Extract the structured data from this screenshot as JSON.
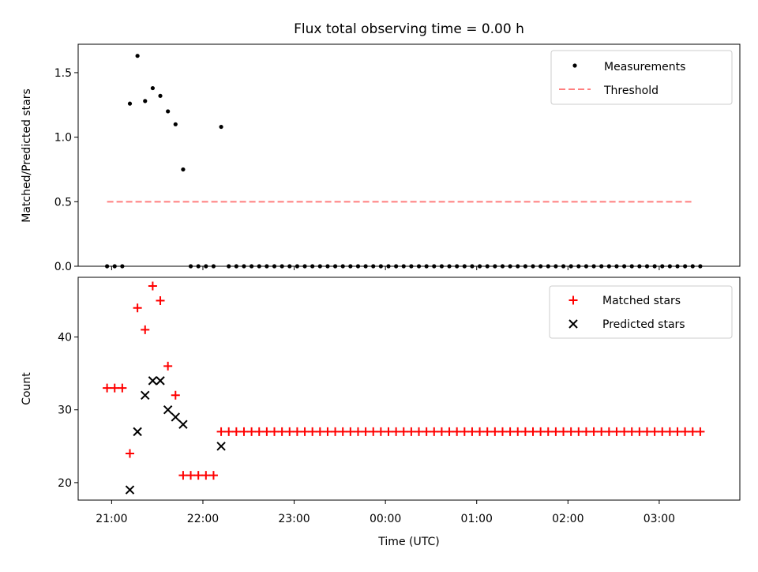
{
  "chart_data": [
    {
      "type": "scatter",
      "title": "Flux total observing time = 0.00 h",
      "xlabel": "",
      "ylabel": "Matched/Predicted stars",
      "xlim": [
        "20:38",
        "03:53"
      ],
      "ylim": [
        0,
        1.72
      ],
      "y_ticks": [
        0.0,
        0.5,
        1.0,
        1.5
      ],
      "y_tick_labels": [
        "0.0",
        "0.5",
        "1.0",
        "1.5"
      ],
      "legend_position": "upper right",
      "series": [
        {
          "name": "Measurements",
          "style": "dot",
          "color": "#000000",
          "x": [
            "20:57",
            "21:02",
            "21:07",
            "21:12",
            "21:17",
            "21:22",
            "21:27",
            "21:32",
            "21:37",
            "21:42",
            "21:47",
            "21:52",
            "21:57",
            "22:02",
            "22:07",
            "22:12"
          ],
          "y": [
            0,
            0,
            0,
            1.26,
            1.63,
            1.28,
            1.38,
            1.32,
            1.2,
            1.1,
            0.75,
            0,
            0,
            0,
            0,
            1.08
          ]
        },
        {
          "name": "Threshold",
          "style": "dashed-line",
          "color": "#ff7f7f",
          "x": [
            "20:57",
            "03:22"
          ],
          "y": [
            0.5,
            0.5
          ]
        }
      ],
      "zero_values_note_free": true
    },
    {
      "type": "scatter",
      "title": "",
      "xlabel": "Time (UTC)",
      "ylabel": "Count",
      "xlim": [
        "20:38",
        "03:53"
      ],
      "ylim": [
        17.6,
        48.2
      ],
      "y_ticks": [
        20,
        30,
        40
      ],
      "y_tick_labels": [
        "20",
        "30",
        "40"
      ],
      "x_ticks": [
        "21:00",
        "22:00",
        "23:00",
        "00:00",
        "01:00",
        "02:00",
        "03:00"
      ],
      "legend_position": "upper right",
      "series": [
        {
          "name": "Matched stars",
          "style": "plus",
          "color": "#ff0000",
          "x": [
            "20:57",
            "21:02",
            "21:07",
            "21:12",
            "21:17",
            "21:22",
            "21:27",
            "21:32",
            "21:37",
            "21:42",
            "21:47",
            "21:52",
            "21:57",
            "22:02",
            "22:07",
            "22:12"
          ],
          "y": [
            33,
            33,
            33,
            24,
            44,
            41,
            47,
            45,
            36,
            32,
            21,
            21,
            21,
            21,
            21,
            27
          ]
        },
        {
          "name": "Predicted stars",
          "style": "x",
          "color": "#000000",
          "x": [
            "21:12",
            "21:17",
            "21:22",
            "21:27",
            "21:32",
            "21:37",
            "21:42",
            "21:47",
            "22:12"
          ],
          "y": [
            19,
            27,
            32,
            34,
            34,
            30,
            29,
            28,
            25
          ]
        }
      ]
    }
  ],
  "x_axis_shared": {
    "start": "20:57",
    "end": "03:27",
    "step_minutes": 5,
    "tail_start": "22:17",
    "tail_matched_count": 27,
    "tail_ratio": 0
  }
}
